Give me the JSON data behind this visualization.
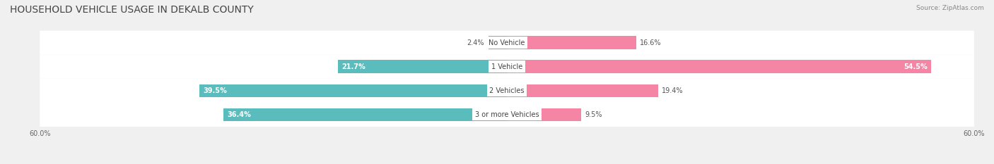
{
  "title": "HOUSEHOLD VEHICLE USAGE IN DEKALB COUNTY",
  "source": "Source: ZipAtlas.com",
  "categories": [
    "No Vehicle",
    "1 Vehicle",
    "2 Vehicles",
    "3 or more Vehicles"
  ],
  "owner_values": [
    2.4,
    21.7,
    39.5,
    36.4
  ],
  "renter_values": [
    16.6,
    54.5,
    19.4,
    9.5
  ],
  "owner_color": "#5BBCBE",
  "renter_color": "#F585A5",
  "axis_limit": 60.0,
  "bg_color": "#f0f0f0",
  "row_bg_color": "#ffffff",
  "label_color_dark": "#555555",
  "label_color_white": "#ffffff",
  "title_fontsize": 10,
  "bar_height": 0.55,
  "figsize": [
    14.06,
    2.33
  ],
  "dpi": 100
}
